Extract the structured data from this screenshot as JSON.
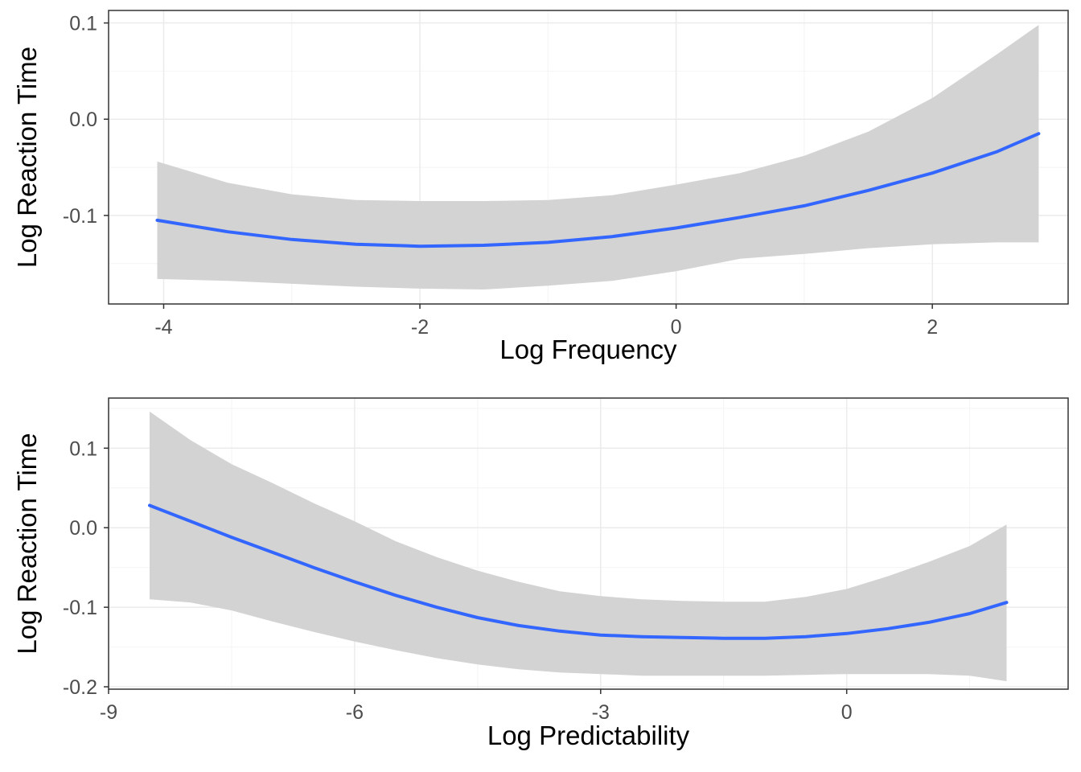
{
  "chart_data": [
    {
      "type": "line",
      "xlabel": "Log Frequency",
      "ylabel": "Log Reaction Time",
      "xlim": [
        -4.43,
        3.06
      ],
      "ylim": [
        -0.192,
        0.113
      ],
      "x_ticks": [
        -4,
        -2,
        0,
        2
      ],
      "x_tick_labels": [
        "-4",
        "-2",
        "0",
        "2"
      ],
      "x_minor": [
        -3,
        -1,
        1
      ],
      "y_ticks": [
        -0.1,
        0.0,
        0.1
      ],
      "y_tick_labels": [
        "-0.1",
        "0.0",
        "0.1"
      ],
      "y_minor": [
        -0.15,
        -0.05,
        0.05
      ],
      "grid": true,
      "series": [
        {
          "x": [
            -4.05,
            -3.5,
            -3.0,
            -2.5,
            -2.0,
            -1.5,
            -1.0,
            -0.5,
            0.0,
            0.5,
            1.0,
            1.5,
            2.0,
            2.5,
            2.83
          ],
          "y": [
            -0.105,
            -0.117,
            -0.125,
            -0.13,
            -0.132,
            -0.131,
            -0.128,
            -0.122,
            -0.113,
            -0.102,
            -0.09,
            -0.074,
            -0.056,
            -0.034,
            -0.015
          ],
          "lower": [
            -0.166,
            -0.168,
            -0.171,
            -0.174,
            -0.176,
            -0.177,
            -0.173,
            -0.168,
            -0.158,
            -0.145,
            -0.14,
            -0.134,
            -0.13,
            -0.128,
            -0.128
          ],
          "upper": [
            -0.044,
            -0.066,
            -0.078,
            -0.084,
            -0.085,
            -0.085,
            -0.084,
            -0.079,
            -0.068,
            -0.056,
            -0.038,
            -0.013,
            0.022,
            0.067,
            0.098
          ]
        }
      ],
      "colors": {
        "line": "#3366ff",
        "ribbon": "#d3d3d3",
        "grid_major": "#ebebeb",
        "grid_minor": "#f4f4f4",
        "border": "#333333"
      }
    },
    {
      "type": "line",
      "xlabel": "Log Predictability",
      "ylabel": "Log Reaction Time",
      "xlim": [
        -9.0,
        2.7
      ],
      "ylim": [
        -0.203,
        0.163
      ],
      "x_ticks": [
        -9,
        -6,
        -3,
        0
      ],
      "x_tick_labels": [
        "-9",
        "-6",
        "-3",
        "0"
      ],
      "x_minor": [
        -7.5,
        -4.5,
        -1.5,
        1.5
      ],
      "y_ticks": [
        -0.2,
        -0.1,
        0.0,
        0.1
      ],
      "y_tick_labels": [
        "-0.2",
        "-0.1",
        "0.0",
        "0.1"
      ],
      "y_minor": [
        -0.15,
        -0.05,
        0.05,
        0.15
      ],
      "grid": true,
      "series": [
        {
          "x": [
            -8.5,
            -8.0,
            -7.5,
            -7.0,
            -6.5,
            -6.0,
            -5.5,
            -5.0,
            -4.5,
            -4.0,
            -3.5,
            -3.0,
            -2.5,
            -2.0,
            -1.5,
            -1.0,
            -0.5,
            0.0,
            0.5,
            1.0,
            1.5,
            1.95
          ],
          "y": [
            0.028,
            0.008,
            -0.012,
            -0.031,
            -0.05,
            -0.068,
            -0.085,
            -0.1,
            -0.113,
            -0.123,
            -0.13,
            -0.135,
            -0.137,
            -0.138,
            -0.139,
            -0.139,
            -0.137,
            -0.133,
            -0.127,
            -0.119,
            -0.108,
            -0.094
          ],
          "lower": [
            -0.09,
            -0.094,
            -0.104,
            -0.118,
            -0.131,
            -0.143,
            -0.154,
            -0.164,
            -0.172,
            -0.178,
            -0.182,
            -0.184,
            -0.186,
            -0.186,
            -0.186,
            -0.186,
            -0.185,
            -0.184,
            -0.184,
            -0.184,
            -0.186,
            -0.193
          ],
          "upper": [
            0.146,
            0.11,
            0.08,
            0.056,
            0.031,
            0.008,
            -0.017,
            -0.037,
            -0.054,
            -0.068,
            -0.08,
            -0.086,
            -0.09,
            -0.092,
            -0.093,
            -0.093,
            -0.087,
            -0.077,
            -0.061,
            -0.043,
            -0.023,
            0.004
          ]
        }
      ],
      "colors": {
        "line": "#3366ff",
        "ribbon": "#d3d3d3",
        "grid_major": "#ebebeb",
        "grid_minor": "#f4f4f4",
        "border": "#333333"
      }
    }
  ]
}
